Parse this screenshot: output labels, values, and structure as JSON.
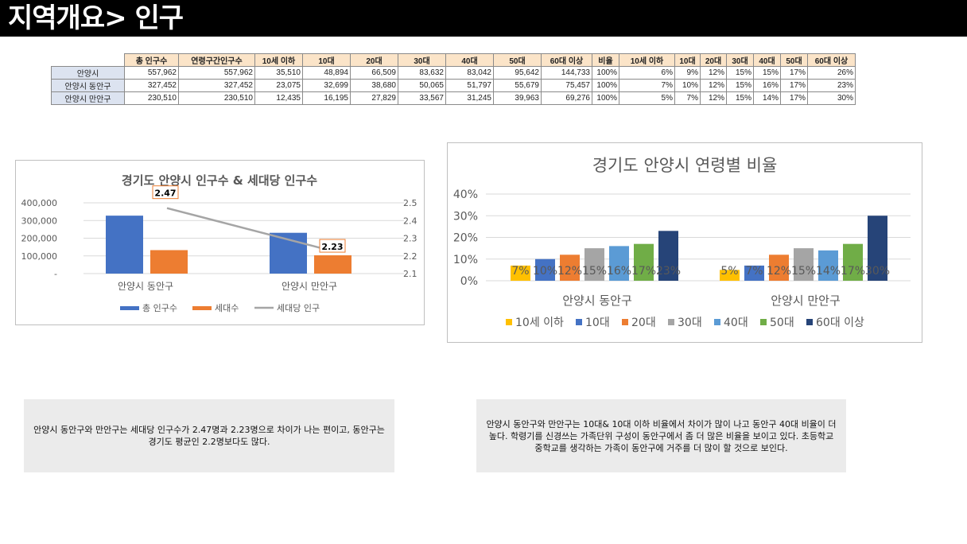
{
  "header": {
    "title": "지역개요> 인구"
  },
  "table": {
    "columns": [
      "총 인구수",
      "연령구간인구수",
      "10세 이하",
      "10대",
      "20대",
      "30대",
      "40대",
      "50대",
      "60대 이상",
      "비율",
      "10세 이하",
      "10대",
      "20대",
      "30대",
      "40대",
      "50대",
      "60대 이상"
    ],
    "rows": [
      {
        "label": "안양시",
        "cells": [
          "557,962",
          "557,962",
          "35,510",
          "48,894",
          "66,509",
          "83,632",
          "83,042",
          "95,642",
          "144,733",
          "100%",
          "6%",
          "9%",
          "12%",
          "15%",
          "15%",
          "17%",
          "26%"
        ]
      },
      {
        "label": "안양시 동안구",
        "cells": [
          "327,452",
          "327,452",
          "23,075",
          "32,699",
          "38,680",
          "50,065",
          "51,797",
          "55,679",
          "75,457",
          "100%",
          "7%",
          "10%",
          "12%",
          "15%",
          "16%",
          "17%",
          "23%"
        ]
      },
      {
        "label": "안양시 만안구",
        "cells": [
          "230,510",
          "230,510",
          "12,435",
          "16,195",
          "27,829",
          "33,567",
          "31,245",
          "39,963",
          "69,276",
          "100%",
          "5%",
          "7%",
          "12%",
          "15%",
          "14%",
          "17%",
          "30%"
        ]
      }
    ]
  },
  "chart_data": [
    {
      "type": "bar",
      "title": "경기도 안양시 인구수 & 세대당 인구수",
      "categories": [
        "안양시 동안구",
        "안양시 만안구"
      ],
      "series": [
        {
          "name": "총 인구수",
          "values": [
            327452,
            230510
          ],
          "color": "#4472c4",
          "axis": "left",
          "kind": "bar"
        },
        {
          "name": "세대수",
          "values": [
            132600,
            103400
          ],
          "color": "#ed7d31",
          "axis": "left",
          "kind": "bar"
        },
        {
          "name": "세대당 인구",
          "values": [
            2.47,
            2.23
          ],
          "color": "#a5a5a5",
          "axis": "right",
          "kind": "line",
          "labels": [
            "2.47",
            "2.23"
          ]
        }
      ],
      "ylim": [
        0,
        400000
      ],
      "y_ticks": [
        "-",
        "100,000",
        "200,000",
        "300,000",
        "400,000"
      ],
      "y2lim": [
        2.1,
        2.5
      ],
      "y2_ticks": [
        "2.1",
        "2.2",
        "2.3",
        "2.4",
        "2.5"
      ],
      "legend": "bottom"
    },
    {
      "type": "bar",
      "title": "경기도 안양시 연령별 비율",
      "categories": [
        "안양시 동안구",
        "안양시 만안구"
      ],
      "series": [
        {
          "name": "10세 이하",
          "values": [
            7,
            5
          ],
          "color": "#ffc000"
        },
        {
          "name": "10대",
          "values": [
            10,
            7
          ],
          "color": "#4472c4"
        },
        {
          "name": "20대",
          "values": [
            12,
            12
          ],
          "color": "#ed7d31"
        },
        {
          "name": "30대",
          "values": [
            15,
            15
          ],
          "color": "#a5a5a5"
        },
        {
          "name": "40대",
          "values": [
            16,
            14
          ],
          "color": "#5b9bd5"
        },
        {
          "name": "50대",
          "values": [
            17,
            17
          ],
          "color": "#70ad47"
        },
        {
          "name": "60대 이상",
          "values": [
            23,
            30
          ],
          "color": "#264478"
        }
      ],
      "ylim": [
        0,
        40
      ],
      "y_ticks": [
        "0%",
        "10%",
        "20%",
        "30%",
        "40%"
      ],
      "value_suffix": "%",
      "legend": "bottom"
    }
  ],
  "notes": [
    "안양시 동안구와 만안구는 세대당 인구수가 2.47명과 2.23명으로 차이가 나는 편이고, 동안구는 경기도 평균인 2.2명보다도 많다.",
    "안양시 동안구와 만안구는 10대& 10대 이하 비율에서 차이가 많이 나고 동안구 40대 비율이 더 높다. 학령기를 신경쓰는 가족단위 구성이 동안구에서 좀 더 많은 비율을 보이고 있다. 초등학교 중학교를 생각하는 가족이 동안구에 거주를 더 많이 할 것으로 보인다."
  ]
}
